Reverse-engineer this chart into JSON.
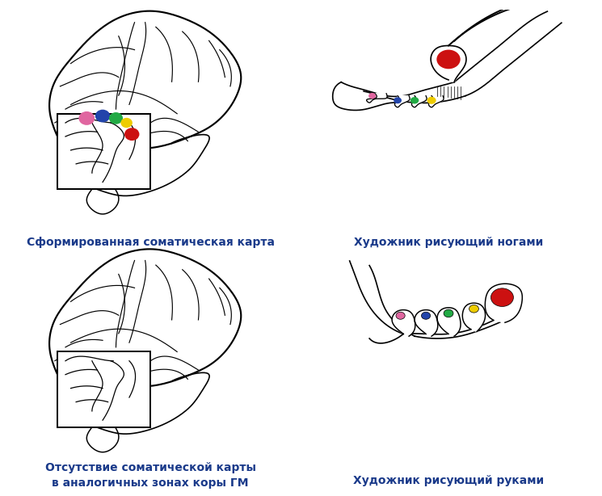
{
  "bg_color": "#ffffff",
  "text_color": "#1a3a8a",
  "label_top_left": "Сформированная соматическая карта",
  "label_top_right": "Художник рисующий ногами",
  "label_bot_left_line1": "Отсутствие соматической карты",
  "label_bot_left_line2": "в аналогичных зонах коры ГМ",
  "label_bot_right": "Художник рисующий руками",
  "dot_colors_brain": [
    "#e066a0",
    "#2244aa",
    "#22aa44",
    "#eecc00",
    "#cc1111"
  ],
  "dot_colors_foot_painting": [
    "#cc1111",
    "#eecc00",
    "#22aa44",
    "#2244aa",
    "#e066a0"
  ],
  "dot_colors_foot_normal": [
    "#cc1111",
    "#eecc00",
    "#22aa44",
    "#2244aa",
    "#e066a0"
  ],
  "font_size_label": 10,
  "font_weight": "bold",
  "lw": 1.2
}
